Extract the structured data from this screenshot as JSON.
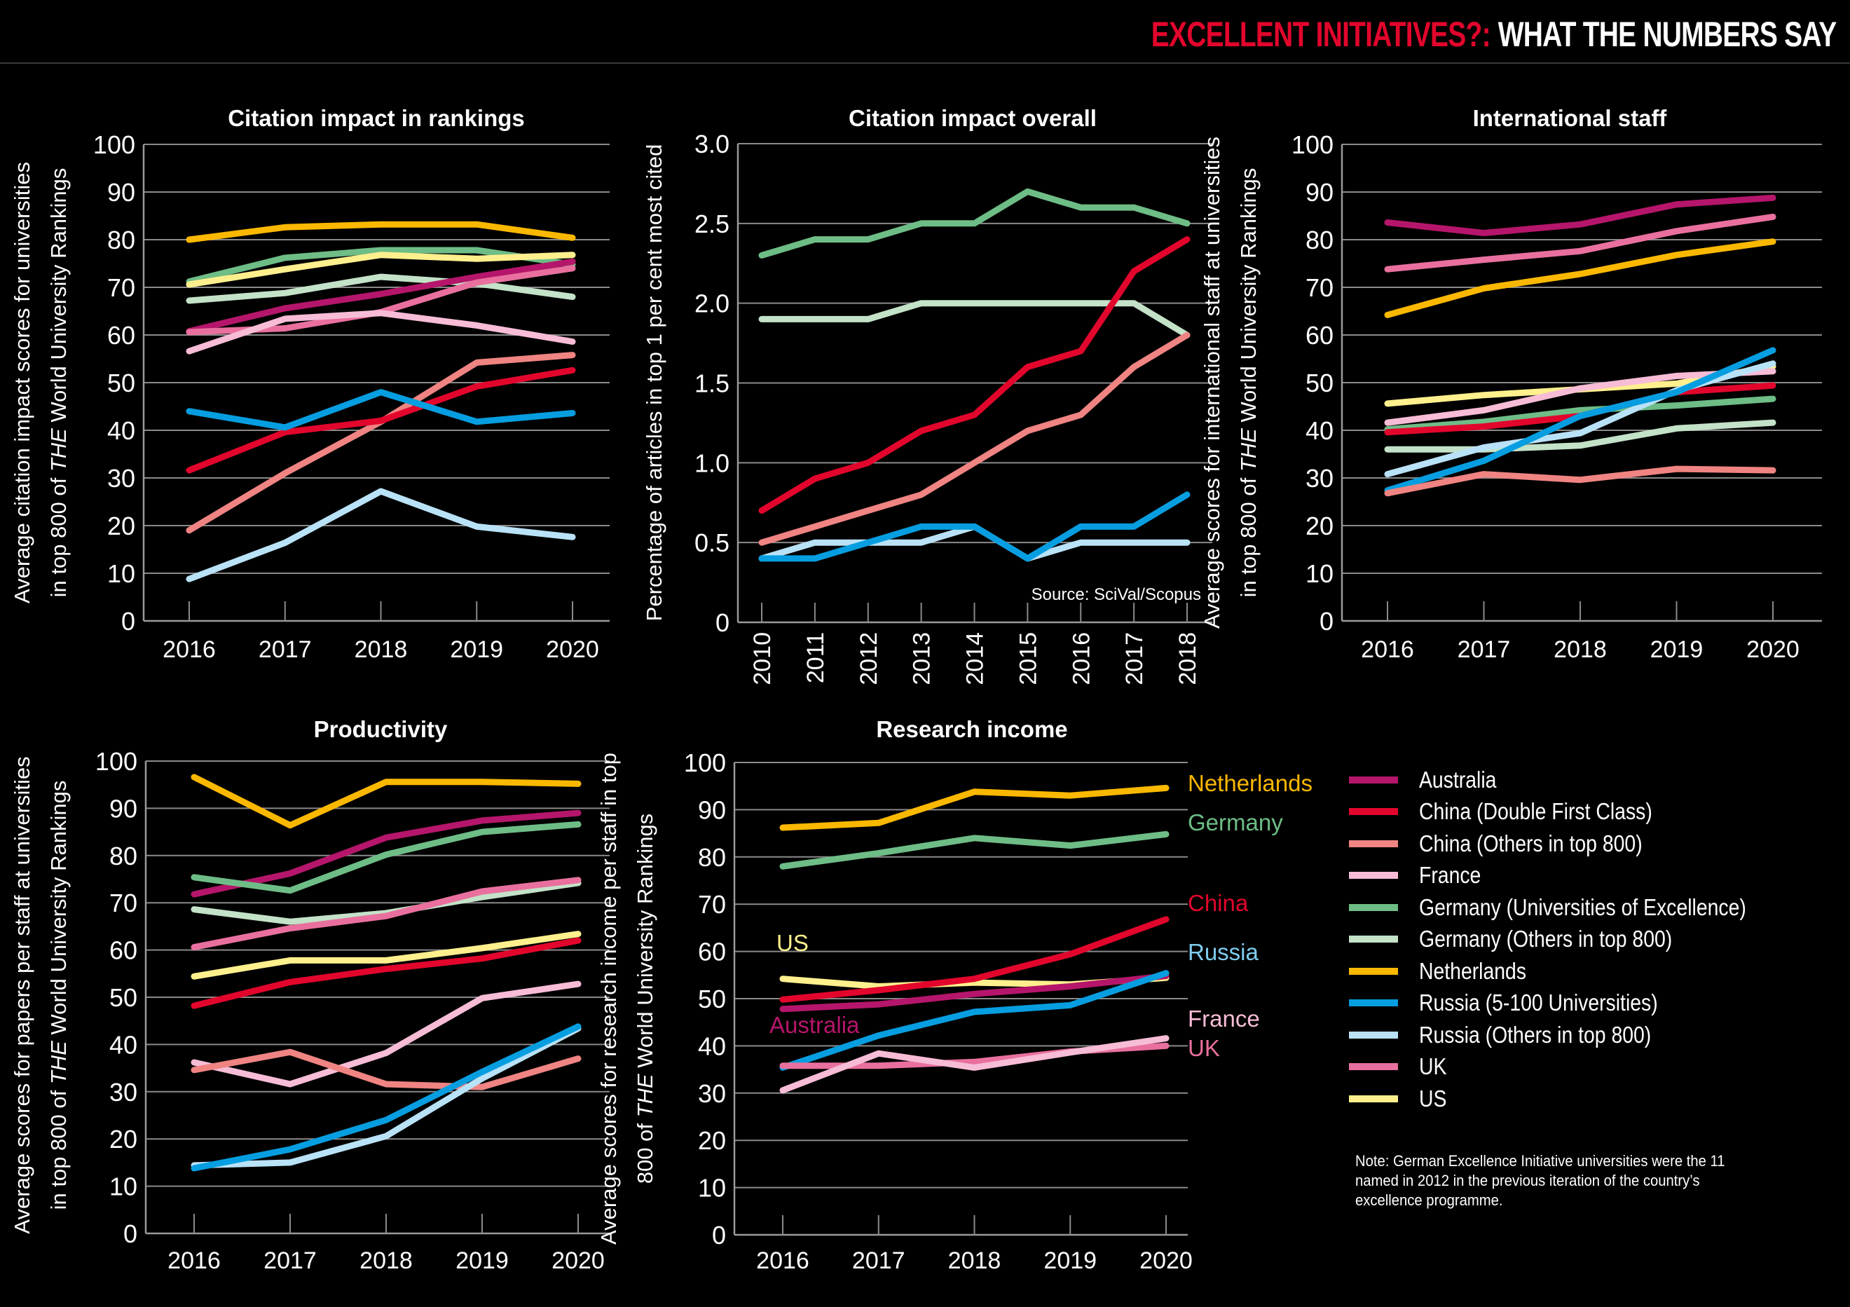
{
  "header": {
    "title_red": "EXCELLENT INITIATIVES?:",
    "title_white": "WHAT THE NUMBERS SAY"
  },
  "colors": {
    "accent_red": "#e2062c",
    "Australia": "#b5166b",
    "China (Double First Class)": "#e2062c",
    "China (Others in top 800)": "#ef8482",
    "France": "#f7bcd6",
    "Germany (Universities of Excellence)": "#6ebd86",
    "Germany (Others in top 800)": "#c3e2c8",
    "Netherlands": "#fbb800",
    "Russia (5-100 Universities)": "#069ee0",
    "Russia (Others in top 800)": "#b9e2f7",
    "UK": "#e9709e",
    "US": "#fff08d"
  },
  "legend": {
    "items": [
      {
        "label": "Australia",
        "color": "#b5166b"
      },
      {
        "label": "China (Double First Class)",
        "color": "#e2062c"
      },
      {
        "label": "China (Others in top 800)",
        "color": "#ef8482"
      },
      {
        "label": "France",
        "color": "#f7bcd6"
      },
      {
        "label": "Germany (Universities of Excellence)",
        "color": "#6ebd86"
      },
      {
        "label": "Germany (Others in top 800)",
        "color": "#c3e2c8"
      },
      {
        "label": "Netherlands",
        "color": "#fbb800"
      },
      {
        "label": "Russia (5-100 Universities)",
        "color": "#069ee0"
      },
      {
        "label": "Russia (Others in top 800)",
        "color": "#b9e2f7"
      },
      {
        "label": "UK",
        "color": "#e9709e"
      },
      {
        "label": "US",
        "color": "#fff08d"
      }
    ]
  },
  "note": "Note: German Excellence Initiative universities were the 11 named in 2012 in the previous iteration of the country’s excellence programme.",
  "chart_data": [
    {
      "id": "citation-rankings",
      "type": "line",
      "title": "Citation impact in rankings",
      "ylabel_lines": [
        "Average citation impact scores for universities",
        "in top 800 of THE World University Rankings"
      ],
      "xlabel": "",
      "x": [
        "2016",
        "2017",
        "2018",
        "2019",
        "2020"
      ],
      "ylim": [
        0,
        100
      ],
      "yticks": [
        0,
        10,
        20,
        30,
        40,
        50,
        60,
        70,
        80,
        90,
        100
      ],
      "ytick_labels": [
        "0",
        "10",
        "20",
        "30",
        "40",
        "50",
        "60",
        "70",
        "80",
        "90",
        "100"
      ],
      "grid": true,
      "series": [
        {
          "name": "Netherlands",
          "values": [
            80.0,
            82.6,
            83.2,
            83.2,
            80.4
          ]
        },
        {
          "name": "Germany (Universities of Excellence)",
          "values": [
            71.2,
            76.2,
            77.8,
            77.8,
            74.8
          ]
        },
        {
          "name": "US",
          "values": [
            70.6,
            73.8,
            76.8,
            76.0,
            76.8
          ]
        },
        {
          "name": "Germany (Others in top 800)",
          "values": [
            67.2,
            68.8,
            72.2,
            70.8,
            68.0
          ]
        },
        {
          "name": "Australia",
          "values": [
            60.8,
            65.6,
            68.6,
            72.2,
            75.4
          ]
        },
        {
          "name": "UK",
          "values": [
            60.6,
            61.4,
            64.8,
            71.0,
            74.0
          ]
        },
        {
          "name": "France",
          "values": [
            56.6,
            63.4,
            64.6,
            62.0,
            58.6
          ]
        },
        {
          "name": "China (Others in top 800)",
          "values": [
            19.0,
            31.0,
            41.8,
            54.2,
            55.8
          ]
        },
        {
          "name": "China (Double First Class)",
          "values": [
            31.6,
            39.6,
            42.0,
            49.2,
            52.6
          ]
        },
        {
          "name": "Russia (5-100 Universities)",
          "values": [
            44.0,
            40.6,
            48.0,
            41.8,
            43.6
          ]
        },
        {
          "name": "Russia (Others in top 800)",
          "values": [
            8.8,
            16.4,
            27.2,
            19.8,
            17.6
          ]
        }
      ]
    },
    {
      "id": "citation-overall",
      "type": "line",
      "title": "Citation impact overall",
      "ylabel_lines": [
        "Percentage of articles in top 1 per cent most cited"
      ],
      "xlabel": "",
      "x": [
        "2010",
        "2011",
        "2012",
        "2013",
        "2014",
        "2015",
        "2016",
        "2017",
        "2018"
      ],
      "ylim": [
        0,
        3.0
      ],
      "yticks": [
        0,
        0.5,
        1.0,
        1.5,
        2.0,
        2.5,
        3.0
      ],
      "ytick_labels": [
        "0",
        "0.5",
        "1.0",
        "1.5",
        "2.0",
        "2.5",
        "3.0"
      ],
      "grid": true,
      "annotation": "Source: SciVal/Scopus",
      "series": [
        {
          "name": "Germany (Universities of Excellence)",
          "values": [
            2.3,
            2.4,
            2.4,
            2.5,
            2.5,
            2.7,
            2.6,
            2.6,
            2.5
          ]
        },
        {
          "name": "Germany (Others in top 800)",
          "values": [
            1.9,
            1.9,
            1.9,
            2.0,
            2.0,
            2.0,
            2.0,
            2.0,
            1.8
          ]
        },
        {
          "name": "China (Double First Class)",
          "values": [
            0.7,
            0.9,
            1.0,
            1.2,
            1.3,
            1.6,
            1.7,
            2.2,
            2.4
          ]
        },
        {
          "name": "China (Others in top 800)",
          "values": [
            0.5,
            0.6,
            0.7,
            0.8,
            1.0,
            1.2,
            1.3,
            1.6,
            1.8
          ]
        },
        {
          "name": "Russia (Others in top 800)",
          "values": [
            0.4,
            0.5,
            0.5,
            0.5,
            0.6,
            0.4,
            0.5,
            0.5,
            0.5
          ]
        },
        {
          "name": "Russia (5-100 Universities)",
          "values": [
            0.4,
            0.4,
            0.5,
            0.6,
            0.6,
            0.4,
            0.6,
            0.6,
            0.8
          ]
        }
      ]
    },
    {
      "id": "international-staff",
      "type": "line",
      "title": "International staff",
      "ylabel_lines": [
        "Average scores for international staff at universities",
        "in top 800 of THE World University Rankings"
      ],
      "xlabel": "",
      "x": [
        "2016",
        "2017",
        "2018",
        "2019",
        "2020"
      ],
      "ylim": [
        0,
        100
      ],
      "yticks": [
        0,
        10,
        20,
        30,
        40,
        50,
        60,
        70,
        80,
        90,
        100
      ],
      "ytick_labels": [
        "0",
        "10",
        "20",
        "30",
        "40",
        "50",
        "60",
        "70",
        "80",
        "90",
        "100"
      ],
      "grid": true,
      "series": [
        {
          "name": "Australia",
          "values": [
            83.6,
            81.4,
            83.2,
            87.4,
            88.8
          ]
        },
        {
          "name": "UK",
          "values": [
            73.8,
            75.8,
            77.6,
            81.8,
            84.8
          ]
        },
        {
          "name": "Netherlands",
          "values": [
            64.2,
            69.8,
            72.8,
            76.8,
            79.6
          ]
        },
        {
          "name": "US",
          "values": [
            45.6,
            47.4,
            48.6,
            49.8,
            53.4
          ]
        },
        {
          "name": "France",
          "values": [
            41.6,
            44.2,
            48.8,
            51.4,
            52.4
          ]
        },
        {
          "name": "Germany (Universities of Excellence)",
          "values": [
            40.2,
            41.8,
            44.2,
            45.2,
            46.6
          ]
        },
        {
          "name": "China (Double First Class)",
          "values": [
            39.6,
            40.8,
            43.0,
            48.0,
            49.4
          ]
        },
        {
          "name": "Germany (Others in top 800)",
          "values": [
            36.0,
            36.0,
            36.8,
            40.4,
            41.6
          ]
        },
        {
          "name": "Russia (Others in top 800)",
          "values": [
            30.8,
            36.4,
            39.4,
            48.4,
            54.0
          ]
        },
        {
          "name": "Russia (5-100 Universities)",
          "values": [
            27.4,
            33.6,
            43.0,
            48.0,
            56.8
          ]
        },
        {
          "name": "China (Others in top 800)",
          "values": [
            26.8,
            30.8,
            29.6,
            31.9,
            31.6
          ]
        }
      ]
    },
    {
      "id": "productivity",
      "type": "line",
      "title": "Productivity",
      "ylabel_lines": [
        "Average scores for papers per staff at universities",
        "in top 800 of THE World University Rankings"
      ],
      "xlabel": "",
      "x": [
        "2016",
        "2017",
        "2018",
        "2019",
        "2020"
      ],
      "ylim": [
        0,
        100
      ],
      "yticks": [
        0,
        10,
        20,
        30,
        40,
        50,
        60,
        70,
        80,
        90,
        100
      ],
      "ytick_labels": [
        "0",
        "10",
        "20",
        "30",
        "40",
        "50",
        "60",
        "70",
        "80",
        "90",
        "100"
      ],
      "grid": true,
      "series": [
        {
          "name": "Netherlands",
          "values": [
            96.6,
            86.4,
            95.6,
            95.6,
            95.2
          ]
        },
        {
          "name": "Australia",
          "values": [
            71.8,
            76.2,
            83.8,
            87.4,
            89.0
          ]
        },
        {
          "name": "Germany (Universities of Excellence)",
          "values": [
            75.4,
            72.6,
            80.2,
            85.0,
            86.6
          ]
        },
        {
          "name": "Germany (Others in top 800)",
          "values": [
            68.6,
            66.0,
            67.8,
            71.2,
            74.2
          ]
        },
        {
          "name": "UK",
          "values": [
            60.6,
            64.6,
            67.2,
            72.4,
            74.8
          ]
        },
        {
          "name": "US",
          "values": [
            54.4,
            57.8,
            57.8,
            60.4,
            63.4
          ]
        },
        {
          "name": "China (Double First Class)",
          "values": [
            48.2,
            53.2,
            56.0,
            58.2,
            62.0
          ]
        },
        {
          "name": "France",
          "values": [
            36.2,
            31.6,
            38.2,
            49.8,
            52.8
          ]
        },
        {
          "name": "China (Others in top 800)",
          "values": [
            34.6,
            38.4,
            31.6,
            31.0,
            37.0
          ]
        },
        {
          "name": "Russia (Others in top 800)",
          "values": [
            14.4,
            15.0,
            20.6,
            32.8,
            43.4
          ]
        },
        {
          "name": "Russia (5-100 Universities)",
          "values": [
            13.8,
            17.8,
            24.0,
            34.2,
            43.8
          ]
        }
      ]
    },
    {
      "id": "research-income",
      "type": "line",
      "title": "Research income",
      "ylabel_lines": [
        "Average scores for research income per staff in top",
        "800 of THE World University Rankings"
      ],
      "xlabel": "",
      "x": [
        "2016",
        "2017",
        "2018",
        "2019",
        "2020"
      ],
      "ylim": [
        0,
        100
      ],
      "yticks": [
        0,
        10,
        20,
        30,
        40,
        50,
        60,
        70,
        80,
        90,
        100
      ],
      "ytick_labels": [
        "0",
        "10",
        "20",
        "30",
        "40",
        "50",
        "60",
        "70",
        "80",
        "90",
        "100"
      ],
      "grid": true,
      "series": [
        {
          "name": "Netherlands",
          "values": [
            86.2,
            87.2,
            93.8,
            93.0,
            94.6
          ],
          "label": "Netherlands"
        },
        {
          "name": "Germany (Universities of Excellence)",
          "values": [
            78.0,
            80.8,
            84.0,
            82.4,
            84.8
          ],
          "label": "Germany"
        },
        {
          "name": "US",
          "values": [
            54.2,
            52.6,
            53.4,
            53.0,
            54.4
          ],
          "label": "US"
        },
        {
          "name": "China (Double First Class)",
          "values": [
            49.8,
            51.8,
            54.2,
            59.4,
            66.8
          ],
          "label": "China"
        },
        {
          "name": "Australia",
          "values": [
            47.8,
            48.8,
            51.0,
            52.6,
            54.8
          ],
          "label": "Australia"
        },
        {
          "name": "Russia (5-100 Universities)",
          "values": [
            35.4,
            42.2,
            47.2,
            48.6,
            55.4
          ],
          "label": "Russia"
        },
        {
          "name": "UK",
          "values": [
            35.8,
            35.8,
            36.6,
            38.8,
            40.0
          ],
          "label": "UK"
        },
        {
          "name": "France",
          "values": [
            30.6,
            38.4,
            35.4,
            38.6,
            41.6
          ],
          "label": "France"
        }
      ],
      "inline_labels": [
        {
          "text": "Netherlands",
          "color": "#fbb800"
        },
        {
          "text": "Germany",
          "color": "#6ebd86"
        },
        {
          "text": "China",
          "color": "#e2062c"
        },
        {
          "text": "Russia",
          "color": "#7fcdf0"
        },
        {
          "text": "France",
          "color": "#f7bcd6"
        },
        {
          "text": "UK",
          "color": "#e9709e"
        },
        {
          "text": "US",
          "color": "#fff08d"
        },
        {
          "text": "Australia",
          "color": "#b5166b"
        }
      ]
    }
  ]
}
